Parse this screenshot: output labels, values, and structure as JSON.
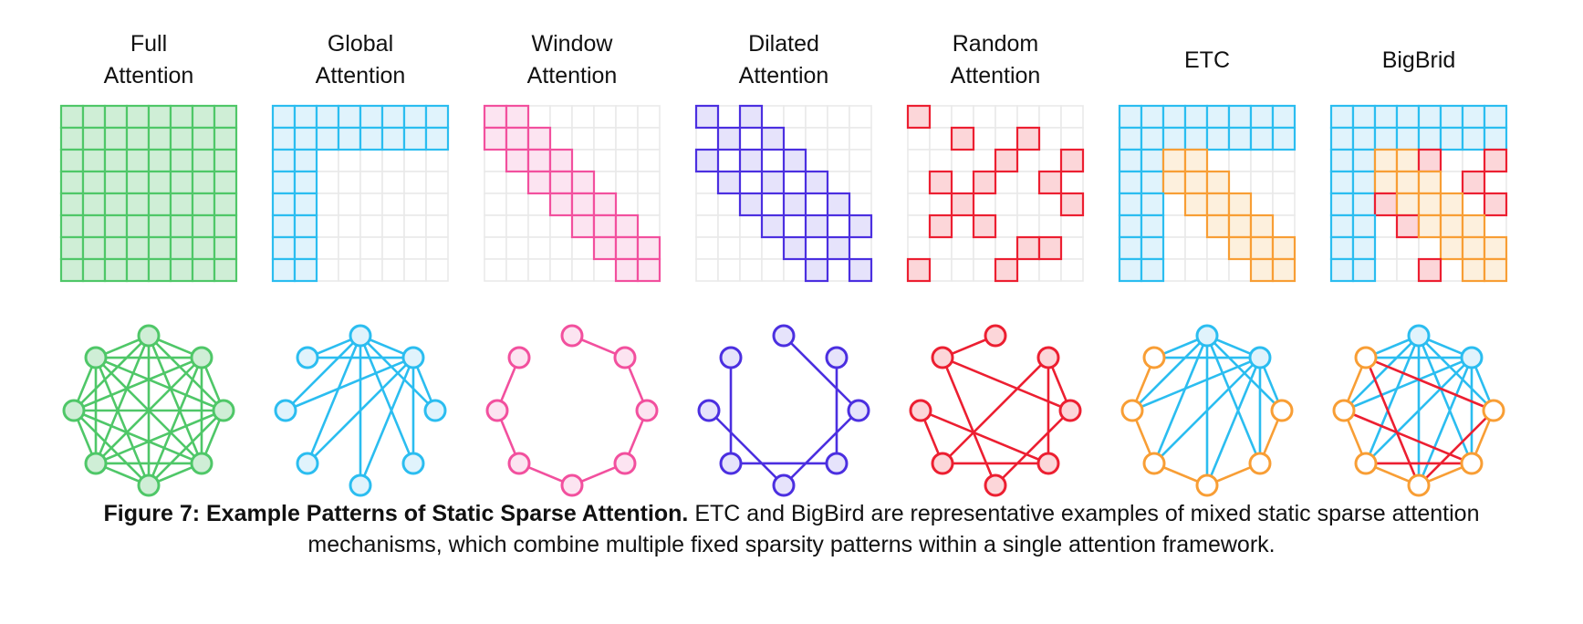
{
  "figure": {
    "caption_bold": "Figure 7: Example Patterns of Static Sparse Attention.",
    "caption_rest": "ETC and BigBird are representative examples of mixed static sparse attention mechanisms, which combine multiple fixed sparsity patterns within a single attention framework."
  },
  "palette": {
    "green": {
      "stroke": "#4fc768",
      "fill": "#cfeed6"
    },
    "cyan": {
      "stroke": "#2bbdf0",
      "fill": "#e0f3fc"
    },
    "pink": {
      "stroke": "#f2509e",
      "fill": "#fce4f1"
    },
    "indigo": {
      "stroke": "#4b2fe0",
      "fill": "#e6e3fb"
    },
    "red": {
      "stroke": "#ec1f31",
      "fill": "#fcd6d9"
    },
    "orange": {
      "stroke": "#f89e35",
      "fill": "#fdf0dd"
    },
    "orange_open": {
      "stroke": "#f89e35",
      "fill": "#ffffff"
    },
    "grid_line": "#e9e9e9",
    "text": "#111111"
  },
  "cell_colors": {
    "G": "green",
    "C": "cyan",
    "P": "pink",
    "I": "indigo",
    "R": "red",
    "O": "orange"
  },
  "panels": [
    {
      "key": "full-attention",
      "title": [
        "Full",
        "Attention"
      ],
      "grid": [
        "GGGGGGGG",
        "GGGGGGGG",
        "GGGGGGGG",
        "GGGGGGGG",
        "GGGGGGGG",
        "GGGGGGGG",
        "GGGGGGGG",
        "GGGGGGGG"
      ],
      "graph_nodes": [
        "green",
        "green",
        "green",
        "green",
        "green",
        "green",
        "green",
        "green"
      ],
      "edge_groups": [
        {
          "color": "green",
          "pairs": [
            [
              0,
              1
            ],
            [
              0,
              2
            ],
            [
              0,
              3
            ],
            [
              0,
              4
            ],
            [
              0,
              5
            ],
            [
              0,
              6
            ],
            [
              0,
              7
            ],
            [
              1,
              2
            ],
            [
              1,
              3
            ],
            [
              1,
              4
            ],
            [
              1,
              5
            ],
            [
              1,
              6
            ],
            [
              1,
              7
            ],
            [
              2,
              3
            ],
            [
              2,
              4
            ],
            [
              2,
              5
            ],
            [
              2,
              6
            ],
            [
              2,
              7
            ],
            [
              3,
              4
            ],
            [
              3,
              5
            ],
            [
              3,
              6
            ],
            [
              3,
              7
            ],
            [
              4,
              5
            ],
            [
              4,
              6
            ],
            [
              4,
              7
            ],
            [
              5,
              6
            ],
            [
              5,
              7
            ],
            [
              6,
              7
            ]
          ]
        }
      ]
    },
    {
      "key": "global-attention",
      "title": [
        "Global",
        "Attention"
      ],
      "grid": [
        "CCCCCCCC",
        "CCCCCCCC",
        "CC......",
        "CC......",
        "CC......",
        "CC......",
        "CC......",
        "CC......"
      ],
      "graph_nodes": [
        "cyan",
        "cyan",
        "cyan",
        "cyan",
        "cyan",
        "cyan",
        "cyan",
        "cyan"
      ],
      "edge_groups": [
        {
          "color": "cyan",
          "pairs": [
            [
              0,
              1
            ],
            [
              0,
              2
            ],
            [
              0,
              3
            ],
            [
              0,
              4
            ],
            [
              0,
              5
            ],
            [
              0,
              6
            ],
            [
              0,
              7
            ],
            [
              1,
              2
            ],
            [
              1,
              3
            ],
            [
              1,
              4
            ],
            [
              1,
              5
            ],
            [
              1,
              6
            ],
            [
              1,
              7
            ]
          ]
        }
      ]
    },
    {
      "key": "window-attention",
      "title": [
        "Window",
        "Attention"
      ],
      "grid": [
        "PP......",
        "PPP.....",
        ".PPP....",
        "..PPP...",
        "...PPP..",
        "....PPP.",
        ".....PPP",
        "......PP"
      ],
      "graph_nodes": [
        "pink",
        "pink",
        "pink",
        "pink",
        "pink",
        "pink",
        "pink",
        "pink"
      ],
      "edge_groups": [
        {
          "color": "pink",
          "pairs": [
            [
              0,
              1
            ],
            [
              1,
              2
            ],
            [
              2,
              3
            ],
            [
              3,
              4
            ],
            [
              4,
              5
            ],
            [
              5,
              6
            ],
            [
              6,
              7
            ]
          ]
        }
      ]
    },
    {
      "key": "dilated-attention",
      "title": [
        "Dilated",
        "Attention"
      ],
      "grid": [
        "I.I.....",
        ".I.I....",
        "I.I.I...",
        ".I.I.I..",
        "..I.I.I.",
        "...I.I.I",
        "....I.I.",
        ".....I.I"
      ],
      "graph_nodes": [
        "indigo",
        "indigo",
        "indigo",
        "indigo",
        "indigo",
        "indigo",
        "indigo",
        "indigo"
      ],
      "edge_groups": [
        {
          "color": "indigo",
          "pairs": [
            [
              0,
              2
            ],
            [
              1,
              3
            ],
            [
              2,
              4
            ],
            [
              3,
              5
            ],
            [
              4,
              6
            ],
            [
              5,
              7
            ]
          ]
        }
      ]
    },
    {
      "key": "random-attention",
      "title": [
        "Random",
        "Attention"
      ],
      "grid": [
        "R.......",
        "..R..R..",
        "....R..R",
        ".R.R..R.",
        "..R....R",
        ".R.R....",
        ".....RR.",
        "R...R..."
      ],
      "graph_nodes": [
        "red",
        "red",
        "red",
        "red",
        "red",
        "red",
        "red",
        "red"
      ],
      "edge_groups": [
        {
          "color": "red",
          "pairs": [
            [
              0,
              7
            ],
            [
              1,
              2
            ],
            [
              1,
              3
            ],
            [
              1,
              5
            ],
            [
              2,
              4
            ],
            [
              2,
              7
            ],
            [
              3,
              5
            ],
            [
              3,
              6
            ],
            [
              4,
              7
            ],
            [
              5,
              6
            ]
          ]
        }
      ]
    },
    {
      "key": "etc",
      "title": [
        "ETC"
      ],
      "grid": [
        "CCCCCCCC",
        "CCCCCCCC",
        "CCOO....",
        "CCOOO...",
        "CC.OOO..",
        "CC..OOO.",
        "CC...OOO",
        "CC....OO"
      ],
      "graph_nodes": [
        "cyan",
        "cyan",
        "orange_open",
        "orange_open",
        "orange_open",
        "orange_open",
        "orange_open",
        "orange_open"
      ],
      "edge_groups": [
        {
          "color": "cyan",
          "pairs": [
            [
              0,
              1
            ],
            [
              0,
              2
            ],
            [
              0,
              3
            ],
            [
              0,
              4
            ],
            [
              0,
              5
            ],
            [
              0,
              6
            ],
            [
              0,
              7
            ],
            [
              1,
              2
            ],
            [
              1,
              3
            ],
            [
              1,
              4
            ],
            [
              1,
              5
            ],
            [
              1,
              6
            ],
            [
              1,
              7
            ]
          ]
        },
        {
          "color": "orange",
          "pairs": [
            [
              2,
              3
            ],
            [
              3,
              4
            ],
            [
              4,
              5
            ],
            [
              5,
              6
            ],
            [
              6,
              7
            ]
          ]
        }
      ]
    },
    {
      "key": "bigbrid",
      "title": [
        "BigBrid"
      ],
      "grid": [
        "CCCCCCCC",
        "CCCCCCCC",
        "CCOOR..R",
        "CCOOO.R.",
        "CCROOO.R",
        "CC.ROOO.",
        "CC...OOO",
        "CC..R.OO"
      ],
      "graph_nodes": [
        "cyan",
        "cyan",
        "orange_open",
        "orange_open",
        "orange_open",
        "orange_open",
        "orange_open",
        "orange_open"
      ],
      "edge_groups": [
        {
          "color": "cyan",
          "pairs": [
            [
              0,
              1
            ],
            [
              0,
              2
            ],
            [
              0,
              3
            ],
            [
              0,
              4
            ],
            [
              0,
              5
            ],
            [
              0,
              6
            ],
            [
              0,
              7
            ],
            [
              1,
              2
            ],
            [
              1,
              3
            ],
            [
              1,
              4
            ],
            [
              1,
              5
            ],
            [
              1,
              6
            ],
            [
              1,
              7
            ]
          ]
        },
        {
          "color": "orange",
          "pairs": [
            [
              2,
              3
            ],
            [
              3,
              4
            ],
            [
              4,
              5
            ],
            [
              5,
              6
            ],
            [
              6,
              7
            ]
          ]
        },
        {
          "color": "red",
          "pairs": [
            [
              2,
              4
            ],
            [
              2,
              7
            ],
            [
              3,
              5
            ],
            [
              3,
              6
            ],
            [
              4,
              7
            ]
          ]
        }
      ]
    }
  ]
}
